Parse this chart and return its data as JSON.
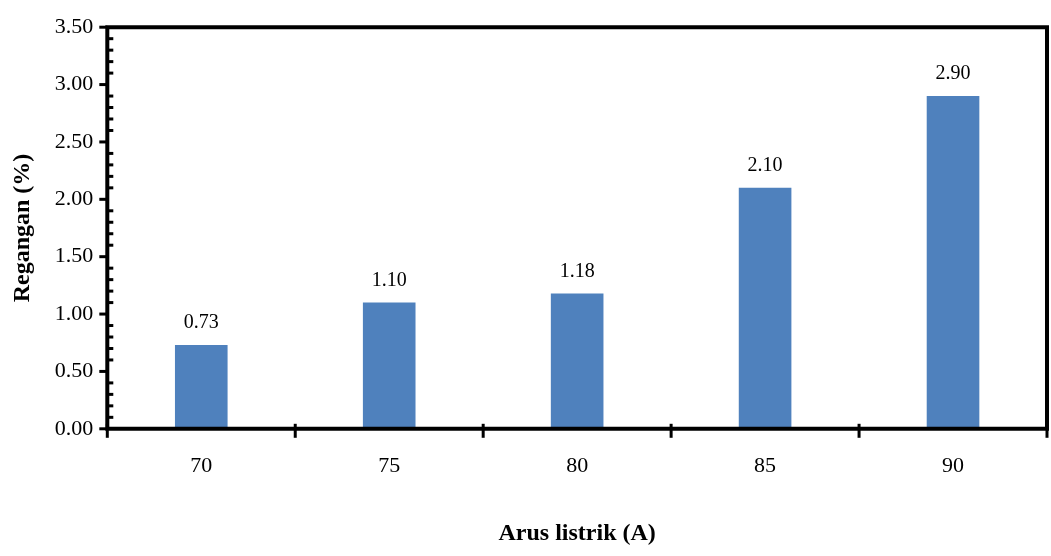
{
  "chart_data": {
    "type": "bar",
    "xlabel": "Arus listrik (A)",
    "ylabel": "Regangan (%)",
    "categories": [
      "70",
      "75",
      "80",
      "85",
      "90"
    ],
    "values": [
      0.73,
      1.1,
      1.18,
      2.1,
      2.9
    ],
    "value_labels": [
      "0.73",
      "1.10",
      "1.18",
      "2.10",
      "2.90"
    ],
    "color": "#4f81bd",
    "ylim": [
      0,
      3.5
    ],
    "yticks": [
      {
        "value": 0,
        "label": "0.00"
      },
      {
        "value": 0.1,
        "label": null
      },
      {
        "value": 0.2,
        "label": null
      },
      {
        "value": 0.3,
        "label": null
      },
      {
        "value": 0.4,
        "label": null
      },
      {
        "value": 0.5,
        "label": "0.50"
      },
      {
        "value": 0.6,
        "label": null
      },
      {
        "value": 0.7,
        "label": null
      },
      {
        "value": 0.8,
        "label": null
      },
      {
        "value": 0.9,
        "label": null
      },
      {
        "value": 1,
        "label": "1.00"
      },
      {
        "value": 1.1,
        "label": null
      },
      {
        "value": 1.2,
        "label": null
      },
      {
        "value": 1.3,
        "label": null
      },
      {
        "value": 1.4,
        "label": null
      },
      {
        "value": 1.5,
        "label": "1.50"
      },
      {
        "value": 1.6,
        "label": null
      },
      {
        "value": 1.7,
        "label": null
      },
      {
        "value": 1.8,
        "label": null
      },
      {
        "value": 1.9,
        "label": null
      },
      {
        "value": 2,
        "label": "2.00"
      },
      {
        "value": 2.1,
        "label": null
      },
      {
        "value": 2.2,
        "label": null
      },
      {
        "value": 2.3,
        "label": null
      },
      {
        "value": 2.4,
        "label": null
      },
      {
        "value": 2.5,
        "label": "2.50"
      },
      {
        "value": 2.6,
        "label": null
      },
      {
        "value": 2.7,
        "label": null
      },
      {
        "value": 2.8,
        "label": null
      },
      {
        "value": 2.9,
        "label": null
      },
      {
        "value": 3,
        "label": "3.00"
      },
      {
        "value": 3.1,
        "label": null
      },
      {
        "value": 3.2,
        "label": null
      },
      {
        "value": 3.3,
        "label": null
      },
      {
        "value": 3.4,
        "label": null
      },
      {
        "value": 3.5,
        "label": "3.50"
      }
    ],
    "grid": false,
    "legend": false
  }
}
